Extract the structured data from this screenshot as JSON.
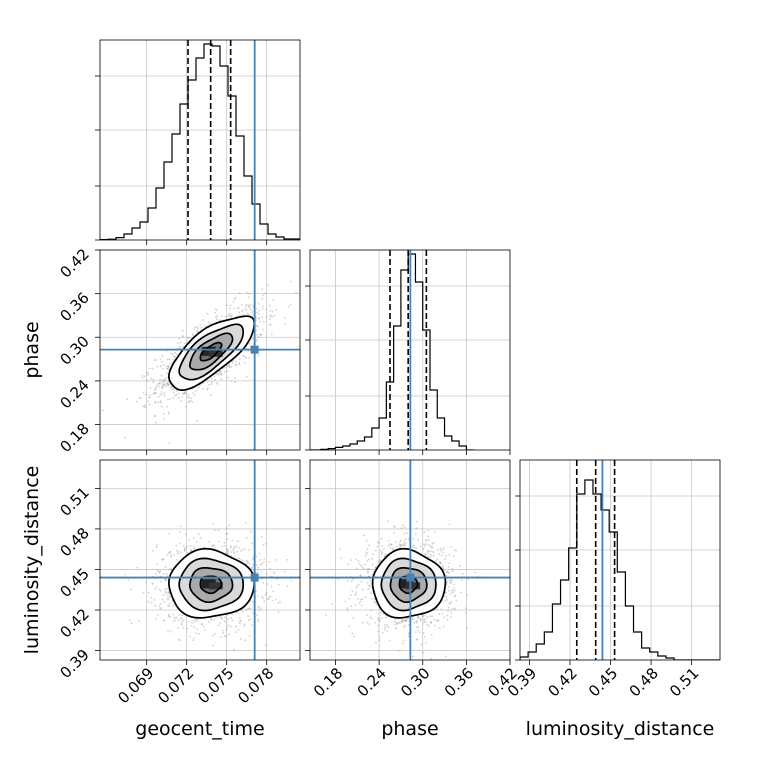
{
  "chart_data": {
    "type": "corner",
    "parameters": [
      "geocent_time",
      "phase",
      "luminosity_distance"
    ],
    "truths": {
      "geocent_time": 0.0771,
      "phase": 0.283,
      "luminosity_distance": 0.444
    },
    "truth_color": "#4682b4",
    "grid": true,
    "axes": {
      "geocent_time": {
        "range": [
          0.0655,
          0.0805
        ],
        "ticks": [
          0.069,
          0.072,
          0.075,
          0.078
        ],
        "tick_labels": [
          "0.069",
          "0.072",
          "0.075",
          "0.078"
        ]
      },
      "phase": {
        "range": [
          0.145,
          0.42
        ],
        "ticks": [
          0.18,
          0.24,
          0.3,
          0.36,
          0.42
        ],
        "tick_labels": [
          "0.18",
          "0.24",
          "0.30",
          "0.36",
          "0.42"
        ]
      },
      "luminosity_distance": {
        "range": [
          0.383,
          0.531
        ],
        "ticks": [
          0.39,
          0.42,
          0.45,
          0.48,
          0.51
        ],
        "tick_labels": [
          "0.39",
          "0.42",
          "0.45",
          "0.48",
          "0.51"
        ]
      }
    },
    "histograms": {
      "geocent_time": {
        "quantiles": [
          0.0721,
          0.0738,
          0.0753
        ],
        "bins": [
          [
            0.0655,
            0.0661,
            0.002
          ],
          [
            0.0661,
            0.0667,
            0.004
          ],
          [
            0.0667,
            0.0673,
            0.012
          ],
          [
            0.0673,
            0.0679,
            0.03
          ],
          [
            0.0679,
            0.0685,
            0.06
          ],
          [
            0.0685,
            0.0691,
            0.09
          ],
          [
            0.0691,
            0.0697,
            0.16
          ],
          [
            0.0697,
            0.0703,
            0.26
          ],
          [
            0.0703,
            0.0709,
            0.39
          ],
          [
            0.0709,
            0.0715,
            0.53
          ],
          [
            0.0715,
            0.0721,
            0.68
          ],
          [
            0.0721,
            0.0727,
            0.8
          ],
          [
            0.0727,
            0.0733,
            0.91
          ],
          [
            0.0733,
            0.0739,
            0.98
          ],
          [
            0.0739,
            0.0745,
            0.97
          ],
          [
            0.0745,
            0.0751,
            0.87
          ],
          [
            0.0751,
            0.0757,
            0.72
          ],
          [
            0.0757,
            0.0763,
            0.52
          ],
          [
            0.0763,
            0.0769,
            0.32
          ],
          [
            0.0769,
            0.0775,
            0.18
          ],
          [
            0.0775,
            0.0781,
            0.08
          ],
          [
            0.0781,
            0.0787,
            0.03
          ],
          [
            0.0787,
            0.0793,
            0.015
          ],
          [
            0.0793,
            0.0805,
            0.005
          ]
        ]
      },
      "phase": {
        "quantiles": [
          0.255,
          0.28,
          0.305
        ],
        "bins": [
          [
            0.145,
            0.16,
            0.0
          ],
          [
            0.16,
            0.17,
            0.003
          ],
          [
            0.17,
            0.18,
            0.007
          ],
          [
            0.18,
            0.19,
            0.013
          ],
          [
            0.19,
            0.2,
            0.02
          ],
          [
            0.2,
            0.21,
            0.03
          ],
          [
            0.21,
            0.22,
            0.045
          ],
          [
            0.22,
            0.23,
            0.065
          ],
          [
            0.23,
            0.24,
            0.11
          ],
          [
            0.24,
            0.25,
            0.16
          ],
          [
            0.25,
            0.26,
            0.34
          ],
          [
            0.26,
            0.27,
            0.62
          ],
          [
            0.27,
            0.28,
            0.9
          ],
          [
            0.28,
            0.29,
            0.98
          ],
          [
            0.29,
            0.3,
            0.84
          ],
          [
            0.3,
            0.31,
            0.6
          ],
          [
            0.31,
            0.32,
            0.3
          ],
          [
            0.32,
            0.33,
            0.16
          ],
          [
            0.33,
            0.34,
            0.07
          ],
          [
            0.34,
            0.35,
            0.045
          ],
          [
            0.35,
            0.36,
            0.02
          ],
          [
            0.36,
            0.37,
            0.0
          ]
        ]
      },
      "luminosity_distance": {
        "quantiles": [
          0.425,
          0.439,
          0.453
        ],
        "bins": [
          [
            0.383,
            0.389,
            0.015
          ],
          [
            0.389,
            0.395,
            0.04
          ],
          [
            0.395,
            0.401,
            0.08
          ],
          [
            0.401,
            0.407,
            0.14
          ],
          [
            0.407,
            0.413,
            0.28
          ],
          [
            0.413,
            0.419,
            0.4
          ],
          [
            0.419,
            0.425,
            0.56
          ],
          [
            0.425,
            0.431,
            0.83
          ],
          [
            0.431,
            0.437,
            0.9
          ],
          [
            0.437,
            0.443,
            0.83
          ],
          [
            0.443,
            0.449,
            0.75
          ],
          [
            0.449,
            0.455,
            0.64
          ],
          [
            0.455,
            0.461,
            0.44
          ],
          [
            0.461,
            0.467,
            0.27
          ],
          [
            0.467,
            0.473,
            0.14
          ],
          [
            0.473,
            0.479,
            0.06
          ],
          [
            0.479,
            0.485,
            0.04
          ],
          [
            0.485,
            0.491,
            0.02
          ],
          [
            0.491,
            0.497,
            0.01
          ],
          [
            0.497,
            0.531,
            0.0
          ]
        ]
      }
    },
    "contour_panels": [
      {
        "x": "geocent_time",
        "y": "phase",
        "center": [
          0.0738,
          0.28
        ],
        "sigma": [
          0.0016,
          0.025
        ],
        "rho": 0.72,
        "levels": [
          0.5,
          1.0,
          1.5,
          2.0
        ]
      },
      {
        "x": "geocent_time",
        "y": "luminosity_distance",
        "center": [
          0.0738,
          0.439
        ],
        "sigma": [
          0.0016,
          0.0125
        ],
        "rho": 0.0,
        "levels": [
          0.5,
          1.0,
          1.5,
          2.0
        ]
      },
      {
        "x": "phase",
        "y": "luminosity_distance",
        "center": [
          0.28,
          0.439
        ],
        "sigma": [
          0.025,
          0.0125
        ],
        "rho": 0.0,
        "levels": [
          0.5,
          1.0,
          1.5,
          2.0
        ]
      }
    ]
  }
}
